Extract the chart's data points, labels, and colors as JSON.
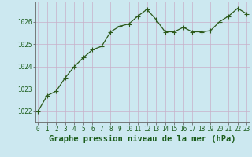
{
  "x": [
    0,
    1,
    2,
    3,
    4,
    5,
    6,
    7,
    8,
    9,
    10,
    11,
    12,
    13,
    14,
    15,
    16,
    17,
    18,
    19,
    20,
    21,
    22,
    23
  ],
  "y": [
    1022.0,
    1022.7,
    1022.9,
    1023.5,
    1024.0,
    1024.4,
    1024.75,
    1024.9,
    1025.55,
    1025.8,
    1025.9,
    1026.25,
    1026.55,
    1026.1,
    1025.55,
    1025.55,
    1025.75,
    1025.55,
    1025.55,
    1025.6,
    1026.0,
    1026.25,
    1026.6,
    1026.35
  ],
  "line_color": "#2d5a1b",
  "marker": "+",
  "marker_size": 4,
  "bg_color": "#cce8f0",
  "grid_color": "#c8afc8",
  "label_color": "#1a5c1a",
  "xlabel": "Graphe pression niveau de la mer (hPa)",
  "xlabel_fontsize": 7.5,
  "ylim": [
    1021.5,
    1026.9
  ],
  "yticks": [
    1022,
    1023,
    1024,
    1025,
    1026
  ],
  "xticks": [
    0,
    1,
    2,
    3,
    4,
    5,
    6,
    7,
    8,
    9,
    10,
    11,
    12,
    13,
    14,
    15,
    16,
    17,
    18,
    19,
    20,
    21,
    22,
    23
  ],
  "tick_fontsize": 5.5,
  "line_width": 0.9
}
